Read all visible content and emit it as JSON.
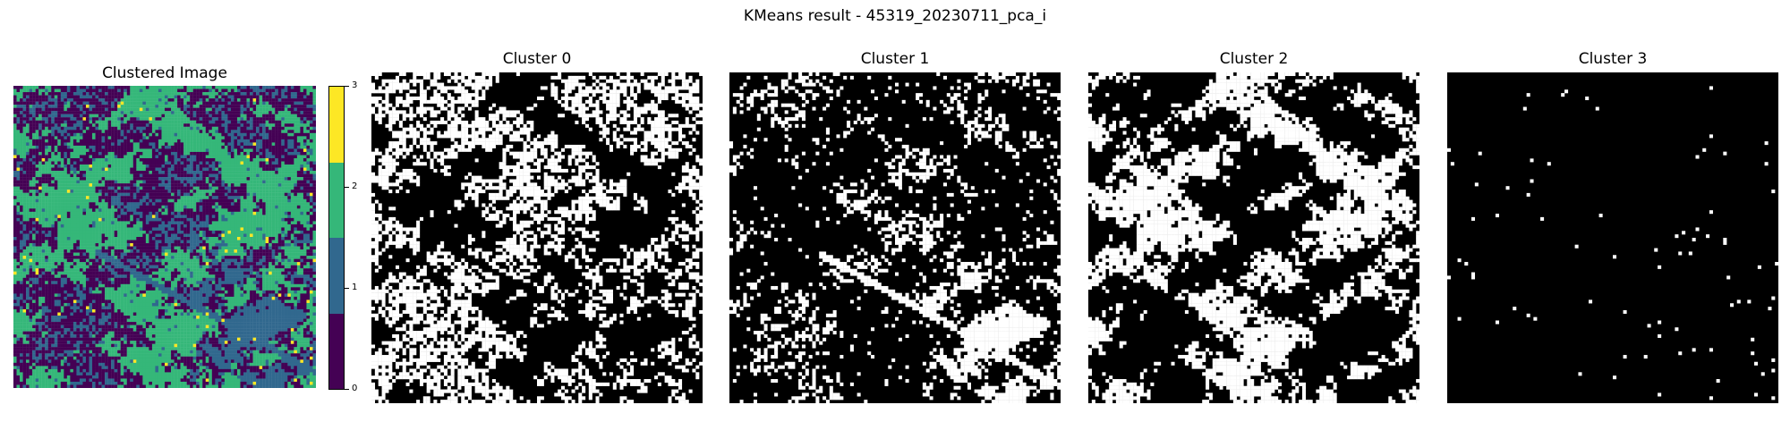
{
  "figure": {
    "suptitle": "KMeans result - 45319_20230711_pca_i"
  },
  "clustered": {
    "title": "Clustered Image",
    "colors": {
      "cluster0": "#440154",
      "cluster1": "#31688e",
      "cluster2": "#35b779",
      "cluster3": "#fde725"
    }
  },
  "colorbar": {
    "ticks": [
      "0",
      "1",
      "2",
      "3"
    ]
  },
  "masks": [
    {
      "title": "Cluster 0",
      "foreground": "#ffffff",
      "background": "#000000"
    },
    {
      "title": "Cluster 1",
      "foreground": "#ffffff",
      "background": "#000000"
    },
    {
      "title": "Cluster 2",
      "foreground": "#ffffff",
      "background": "#000000"
    },
    {
      "title": "Cluster 3",
      "foreground": "#ffffff",
      "background": "#000000"
    }
  ]
}
